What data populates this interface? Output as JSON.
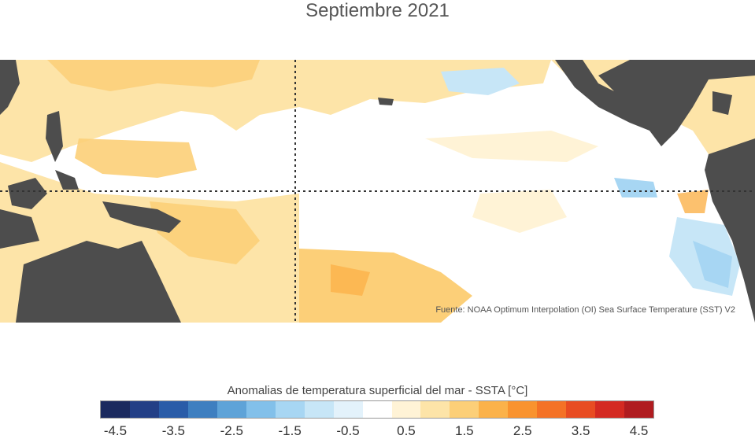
{
  "title": "Septiembre 2021",
  "source_note": "Fuente: NOAA Optimum Interpolation (OI) Sea Surface Temperature (SST) V2",
  "colorbar": {
    "title": "Anomalias de temperatura superficial del mar - SSTA  [°C]",
    "colors": [
      "#1b2a5e",
      "#233f86",
      "#2a5ca8",
      "#3e7fc0",
      "#5ea3d8",
      "#82c0ea",
      "#a7d6f3",
      "#c7e6f7",
      "#e3f2fb",
      "#ffffff",
      "#fff3d6",
      "#fde4a8",
      "#fccf78",
      "#fbb24a",
      "#f9932f",
      "#f47226",
      "#e84c22",
      "#d42a22",
      "#b01c20"
    ],
    "tick_labels": [
      "-4.5",
      "-3.5",
      "-2.5",
      "-1.5",
      "-0.5",
      "0.5",
      "1.5",
      "2.5",
      "3.5",
      "4.5"
    ]
  },
  "colors": {
    "land": "#4d4d4d",
    "gridline": "#333333"
  }
}
